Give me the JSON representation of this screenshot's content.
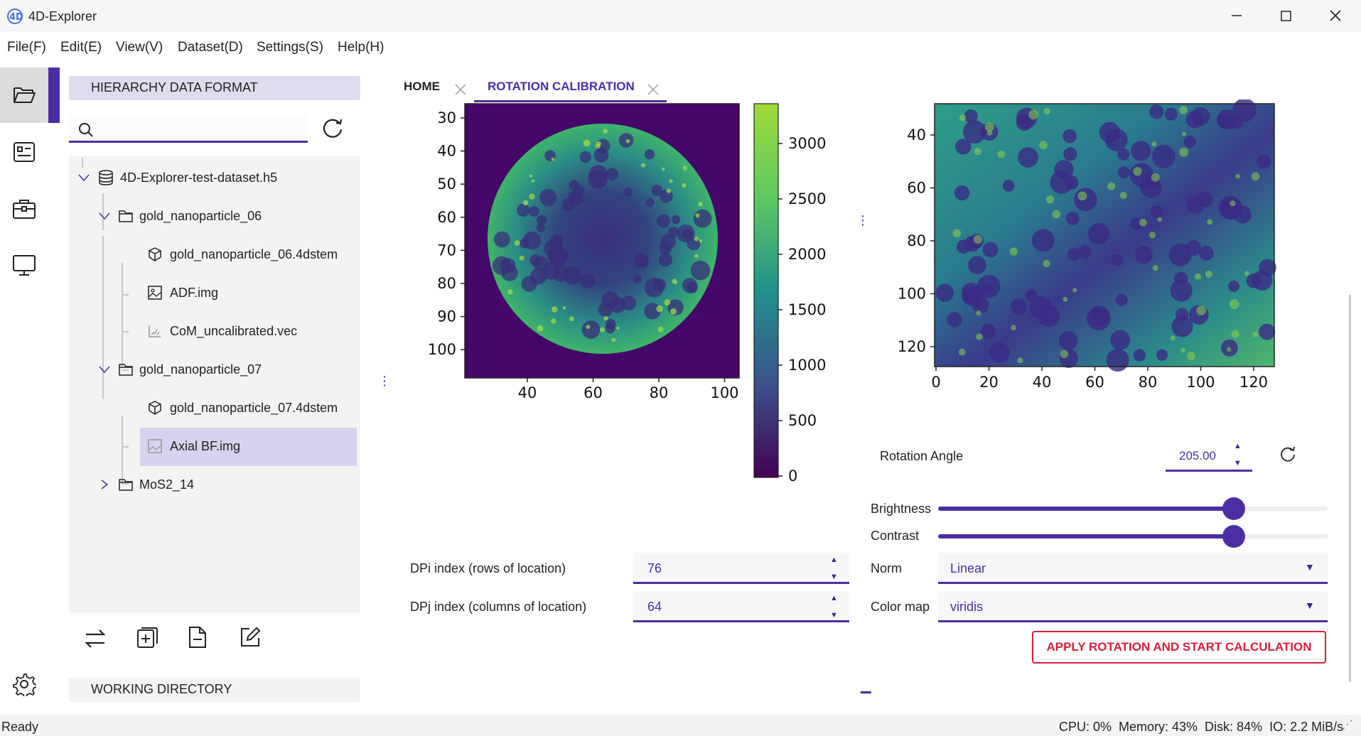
{
  "window": {
    "title": "4D-Explorer",
    "logo": "4D"
  },
  "menu": [
    "File(F)",
    "Edit(E)",
    "View(V)",
    "Dataset(D)",
    "Settings(S)",
    "Help(H)"
  ],
  "sidebar": {
    "section_title": "HIERARCHY DATA FORMAT",
    "search_placeholder": "",
    "tree": {
      "root": "4D-Explorer-test-dataset.h5",
      "group1": {
        "name": "gold_nanoparticle_06",
        "items": [
          "gold_nanoparticle_06.4dstem",
          "ADF.img",
          "CoM_uncalibrated.vec"
        ]
      },
      "group2": {
        "name": "gold_nanoparticle_07",
        "items": [
          "gold_nanoparticle_07.4dstem",
          "Axial BF.img"
        ]
      },
      "group3": {
        "name": "MoS2_14"
      }
    },
    "working_directory": "WORKING DIRECTORY"
  },
  "tabs": [
    {
      "label": "HOME",
      "active": false
    },
    {
      "label": "ROTATION CALIBRATION",
      "active": true
    }
  ],
  "plot_left": {
    "y_ticks": [
      "30",
      "40",
      "50",
      "60",
      "70",
      "80",
      "90",
      "100"
    ],
    "x_ticks": [
      "40",
      "60",
      "80",
      "100"
    ]
  },
  "colorbar": {
    "ticks": [
      "3000",
      "2500",
      "2000",
      "1500",
      "1000",
      "500",
      "0"
    ]
  },
  "plot_right": {
    "y_ticks": [
      "40",
      "60",
      "80",
      "100",
      "120"
    ],
    "x_ticks": [
      "0",
      "20",
      "40",
      "60",
      "80",
      "100",
      "120"
    ]
  },
  "controls": {
    "rotation_angle_label": "Rotation Angle",
    "rotation_angle_value": "205.00",
    "brightness_label": "Brightness",
    "brightness_level": 0.76,
    "contrast_label": "Contrast",
    "contrast_level": 0.76,
    "dpi_label": "DPi index (rows of location)",
    "dpi_value": "76",
    "dpj_label": "DPj index (columns of location)",
    "dpj_value": "64",
    "norm_label": "Norm",
    "norm_value": "Linear",
    "cmap_label": "Color map",
    "cmap_value": "viridis",
    "apply_button": "APPLY ROTATION AND START CALCULATION"
  },
  "status": {
    "left": "Ready",
    "right": "CPU: 0%  Memory: 43%  Disk: 84%  IO: 2.2 MiB/s"
  },
  "colors": {
    "accent": "#4b2ea3",
    "selection": "#d8d2ee",
    "danger": "#d61f3a"
  }
}
